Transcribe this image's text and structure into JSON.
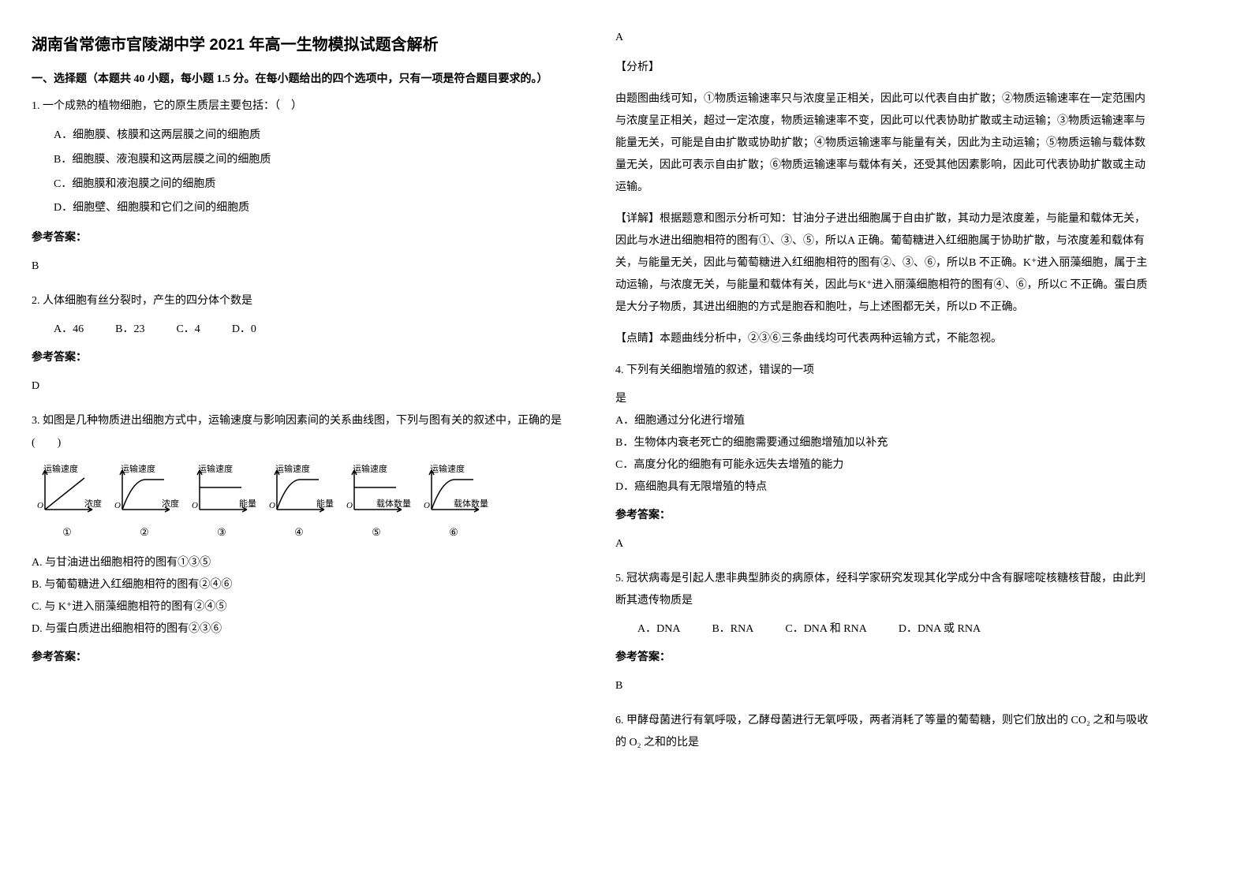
{
  "title": "湖南省常德市官陵湖中学 2021 年高一生物模拟试题含解析",
  "section1": {
    "header": "一、选择题（本题共 40 小题，每小题 1.5 分。在每小题给出的四个选项中，只有一项是符合题目要求的。）"
  },
  "q1": {
    "text": "1. 一个成熟的植物细胞，它的原生质层主要包括：（　）",
    "optA": "A．细胞膜、核膜和这两层膜之间的细胞质",
    "optB": "B．细胞膜、液泡膜和这两层膜之间的细胞质",
    "optC": "C．细胞膜和液泡膜之间的细胞质",
    "optD": "D．细胞壁、细胞膜和它们之间的细胞质",
    "answerLabel": "参考答案：",
    "answer": "B"
  },
  "q2": {
    "text": "2. 人体细胞有丝分裂时，产生的四分体个数是",
    "optA": "A．46",
    "optB": "B．23",
    "optC": "C．4",
    "optD": "D．0",
    "answerLabel": "参考答案：",
    "answer": "D"
  },
  "q3": {
    "text": "3. 如图是几种物质进出细胞方式中，运输速度与影响因素间的关系曲线图，下列与图有关的叙述中，正确的是(　　)",
    "optA": "A.  与甘油进出细胞相符的图有①③⑤",
    "optB": "B.  与葡萄糖进入红细胞相符的图有②④⑥",
    "optC": "C.  与 K⁺进入丽藻细胞相符的图有②④⑤",
    "optD": "D.  与蛋白质进出细胞相符的图有②③⑥",
    "answerLabel": "参考答案：",
    "answer": "A",
    "charts": {
      "ylabel": "运输速度",
      "origin": "O",
      "items": [
        {
          "xlabel": "浓度",
          "num": "①",
          "type": "linear"
        },
        {
          "xlabel": "浓度",
          "num": "②",
          "type": "saturating"
        },
        {
          "xlabel": "能量",
          "num": "③",
          "type": "flat"
        },
        {
          "xlabel": "能量",
          "num": "④",
          "type": "saturating"
        },
        {
          "xlabel": "载体数量",
          "num": "⑤",
          "type": "flat"
        },
        {
          "xlabel": "载体数量",
          "num": "⑥",
          "type": "saturating"
        }
      ],
      "stroke_color": "#000000",
      "stroke_width": 1.5,
      "background": "#ffffff"
    },
    "analysis_label": "【分析】",
    "analysis_text": "由题图曲线可知，①物质运输速率只与浓度呈正相关，因此可以代表自由扩散；②物质运输速率在一定范围内与浓度呈正相关，超过一定浓度，物质运输速率不变，因此可以代表协助扩散或主动运输；③物质运输速率与能量无关，可能是自由扩散或协助扩散；④物质运输速率与能量有关，因此为主动运输；⑤物质运输与载体数量无关，因此可表示自由扩散；⑥物质运输速率与载体有关，还受其他因素影响，因此可代表协助扩散或主动运输。",
    "detail_label": "【详解】",
    "detail_text": "根据题意和图示分析可知：甘油分子进出细胞属于自由扩散，其动力是浓度差，与能量和载体无关，因此与水进出细胞相符的图有①、③、⑤，所以A 正确。葡萄糖进入红细胞属于协助扩散，与浓度差和载体有关，与能量无关，因此与葡萄糖进入红细胞相符的图有②、③、⑥，所以B 不正确。K⁺进入丽藻细胞，属于主动运输，与浓度无关，与能量和载体有关，因此与K⁺进入丽藻细胞相符的图有④、⑥，所以C 不正确。蛋白质是大分子物质，其进出细胞的方式是胞吞和胞吐，与上述图都无关，所以D 不正确。",
    "point_label": "【点睛】",
    "point_text": "本题曲线分析中，②③⑥三条曲线均可代表两种运输方式，不能忽视。"
  },
  "q4": {
    "text": "4. 下列有关细胞增殖的叙述，错误的一项",
    "text2": "是",
    "optA": "A．细胞通过分化进行增殖",
    "optB": "B．生物体内衰老死亡的细胞需要通过细胞增殖加以补充",
    "optC": "C．高度分化的细胞有可能永远失去增殖的能力",
    "optD": "D．癌细胞具有无限增殖的特点",
    "answerLabel": "参考答案：",
    "answer": "A"
  },
  "q5": {
    "text": "5. 冠状病毒是引起人患非典型肺炎的病原体，经科学家研究发现其化学成分中含有脲嘧啶核糖核苷酸，由此判断其遗传物质是",
    "optA": "A．DNA",
    "optB": "B．RNA",
    "optC": "C．DNA 和 RNA",
    "optD": "D．DNA 或 RNA",
    "answerLabel": "参考答案：",
    "answer": "B"
  },
  "q6": {
    "text": "6. 甲酵母菌进行有氧呼吸，乙酵母菌进行无氧呼吸，两者消耗了等量的葡萄糖，则它们放出的 CO₂ 之和与吸收的 O₂ 之和的比是"
  }
}
